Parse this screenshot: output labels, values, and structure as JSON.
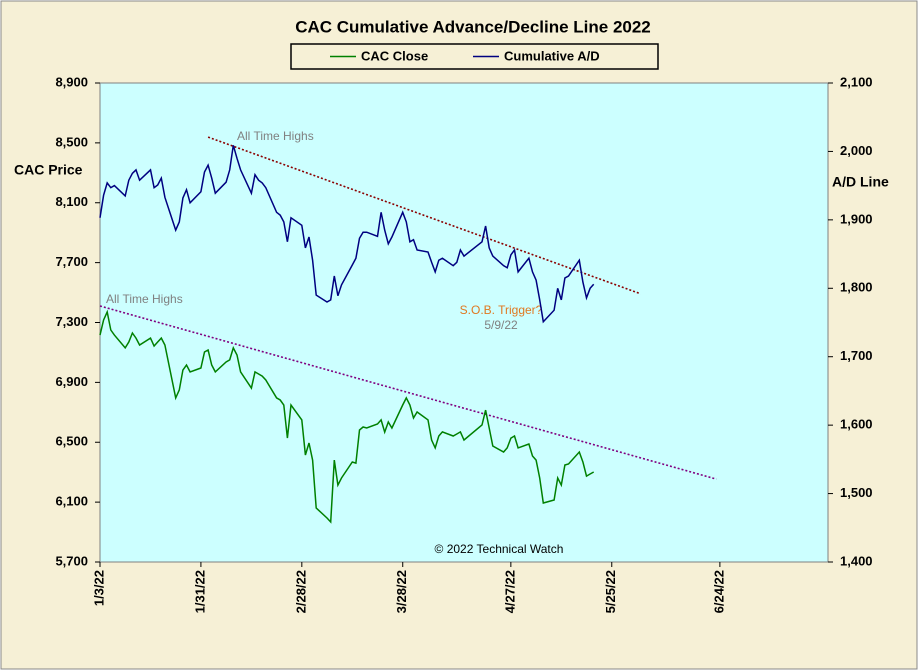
{
  "chart_data": {
    "type": "line",
    "title": "CAC Cumulative  Advance/Decline  Line 2022",
    "y_label": "CAC Price",
    "y2_label": "A/D Line",
    "legend": "top",
    "grid": false,
    "x": [
      "1/3/22",
      "1/4/22",
      "1/5/22",
      "1/6/22",
      "1/7/22",
      "1/10/22",
      "1/11/22",
      "1/12/22",
      "1/13/22",
      "1/14/22",
      "1/17/22",
      "1/18/22",
      "1/19/22",
      "1/20/22",
      "1/21/22",
      "1/24/22",
      "1/25/22",
      "1/26/22",
      "1/27/22",
      "1/28/22",
      "1/31/22",
      "2/1/22",
      "2/2/22",
      "2/3/22",
      "2/4/22",
      "2/7/22",
      "2/8/22",
      "2/9/22",
      "2/10/22",
      "2/11/22",
      "2/14/22",
      "2/15/22",
      "2/16/22",
      "2/17/22",
      "2/18/22",
      "2/21/22",
      "2/22/22",
      "2/23/22",
      "2/24/22",
      "2/25/22",
      "2/28/22",
      "3/1/22",
      "3/2/22",
      "3/3/22",
      "3/4/22",
      "3/7/22",
      "3/8/22",
      "3/9/22",
      "3/10/22",
      "3/11/22",
      "3/14/22",
      "3/15/22",
      "3/16/22",
      "3/17/22",
      "3/18/22",
      "3/21/22",
      "3/22/22",
      "3/23/22",
      "3/24/22",
      "3/25/22",
      "3/28/22",
      "3/29/22",
      "3/30/22",
      "3/31/22",
      "4/1/22",
      "4/4/22",
      "4/5/22",
      "4/6/22",
      "4/7/22",
      "4/8/22",
      "4/11/22",
      "4/12/22",
      "4/13/22",
      "4/14/22",
      "4/19/22",
      "4/20/22",
      "4/21/22",
      "4/22/22",
      "4/25/22",
      "4/26/22",
      "4/27/22",
      "4/28/22",
      "4/29/22",
      "5/2/22",
      "5/3/22",
      "5/4/22",
      "5/5/22",
      "5/6/22",
      "5/9/22",
      "5/10/22",
      "5/11/22",
      "5/12/22",
      "5/13/22",
      "5/16/22",
      "5/17/22",
      "5/18/22",
      "5/19/22",
      "5/20/22"
    ],
    "series": [
      {
        "name": "CAC Close",
        "color": "#008000",
        "axis": "y",
        "values": [
          7216,
          7317,
          7370,
          7250,
          7216,
          7130,
          7170,
          7230,
          7196,
          7150,
          7196,
          7143,
          7170,
          7196,
          7150,
          6796,
          6850,
          6983,
          7016,
          6970,
          6996,
          7103,
          7116,
          7016,
          6970,
          7036,
          7050,
          7130,
          7083,
          6970,
          6862,
          6970,
          6956,
          6942,
          6916,
          6796,
          6782,
          6749,
          6528,
          6749,
          6649,
          6415,
          6495,
          6381,
          6061,
          5994,
          5967,
          6381,
          6214,
          6261,
          6368,
          6361,
          6582,
          6602,
          6595,
          6622,
          6649,
          6568,
          6635,
          6595,
          6749,
          6796,
          6749,
          6662,
          6702,
          6649,
          6515,
          6462,
          6542,
          6569,
          6542,
          6555,
          6569,
          6515,
          6615,
          6715,
          6595,
          6475,
          6435,
          6462,
          6528,
          6542,
          6462,
          6488,
          6408,
          6381,
          6261,
          6094,
          6114,
          6261,
          6214,
          6348,
          6355,
          6435,
          6368,
          6274,
          6288,
          6301
        ]
      },
      {
        "name": "Cumulative A/D",
        "color": "#000080",
        "axis": "y2",
        "values": [
          1903,
          1936,
          1954,
          1947,
          1950,
          1935,
          1958,
          1968,
          1973,
          1958,
          1973,
          1947,
          1951,
          1961,
          1933,
          1885,
          1897,
          1932,
          1944,
          1925,
          1941,
          1970,
          1980,
          1961,
          1939,
          1955,
          1973,
          2009,
          1990,
          1973,
          1939,
          1966,
          1958,
          1954,
          1947,
          1911,
          1907,
          1897,
          1868,
          1903,
          1892,
          1859,
          1875,
          1841,
          1790,
          1780,
          1783,
          1818,
          1789,
          1805,
          1834,
          1844,
          1873,
          1882,
          1882,
          1876,
          1911,
          1885,
          1865,
          1875,
          1911,
          1897,
          1868,
          1871,
          1856,
          1853,
          1838,
          1824,
          1841,
          1844,
          1833,
          1838,
          1856,
          1847,
          1868,
          1891,
          1859,
          1847,
          1833,
          1830,
          1849,
          1856,
          1824,
          1844,
          1824,
          1812,
          1783,
          1751,
          1768,
          1800,
          1783,
          1815,
          1818,
          1841,
          1809,
          1786,
          1800,
          1806
        ]
      }
    ],
    "trendlines": [
      {
        "color": "#8b0000",
        "axis": "y2",
        "x": [
          "2/2/22",
          "6/2/22"
        ],
        "values": [
          2021,
          1792
        ]
      },
      {
        "color": "#800080",
        "axis": "y",
        "x": [
          "1/3/22",
          "6/23/22"
        ],
        "values": [
          7410,
          6254
        ]
      }
    ],
    "xlim": [
      "1/3/22",
      "7/24/22"
    ],
    "xticks": [
      "1/3/22",
      "1/31/22",
      "2/28/22",
      "3/28/22",
      "4/27/22",
      "5/25/22",
      "6/24/22"
    ],
    "ylim": [
      5700,
      8900
    ],
    "yticks": [
      {
        "value": 5700,
        "label": "5,700"
      },
      {
        "value": 6100,
        "label": "6,100"
      },
      {
        "value": 6500,
        "label": "6,500"
      },
      {
        "value": 6900,
        "label": "6,900"
      },
      {
        "value": 7300,
        "label": "7,300"
      },
      {
        "value": 7700,
        "label": "7,700"
      },
      {
        "value": 8100,
        "label": "8,100"
      },
      {
        "value": 8500,
        "label": "8,500"
      },
      {
        "value": 8900,
        "label": "8,900"
      }
    ],
    "y2lim": [
      1400,
      2100
    ],
    "y2ticks": [
      {
        "value": 1400,
        "label": "1,400"
      },
      {
        "value": 1500,
        "label": "1,500"
      },
      {
        "value": 1600,
        "label": "1,600"
      },
      {
        "value": 1700,
        "label": "1,700"
      },
      {
        "value": 1800,
        "label": "1,800"
      },
      {
        "value": 1900,
        "label": "1,900"
      },
      {
        "value": 2000,
        "label": "2,000"
      },
      {
        "value": 2100,
        "label": "2,100"
      }
    ],
    "annotations": [
      "All Time Highs",
      "All Time Highs",
      "S.O.B. Trigger?",
      "5/9/22",
      "© 2022 Technical Watch"
    ]
  }
}
